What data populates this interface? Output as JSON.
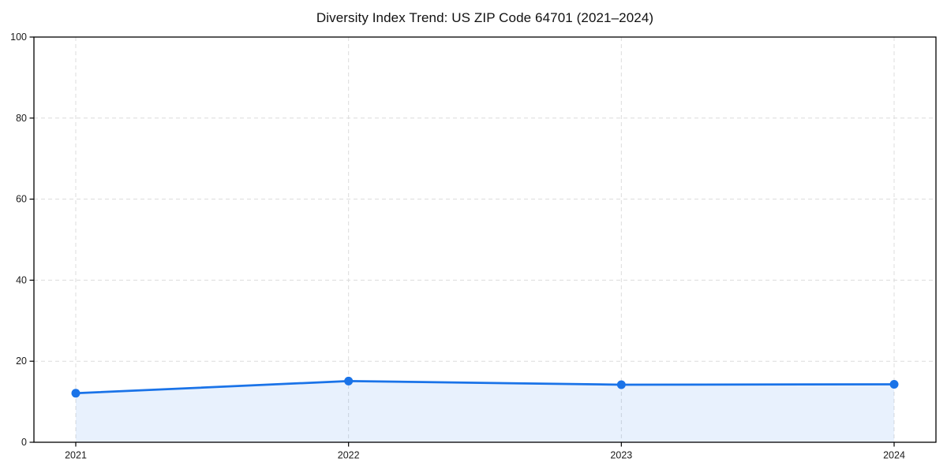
{
  "figure": {
    "background": "#ffffff"
  },
  "chart_data": {
    "type": "line",
    "title": "Diversity Index Trend: US ZIP Code 64701 (2021–2024)",
    "x": [
      "2021",
      "2022",
      "2023",
      "2024"
    ],
    "series": [
      {
        "name": "Diversity Index",
        "values": [
          12.1,
          15.1,
          14.2,
          14.3
        ]
      }
    ],
    "xlabel": "",
    "ylabel": "",
    "ylim": [
      0,
      100
    ],
    "yticks": [
      0,
      20,
      40,
      60,
      80,
      100
    ],
    "grid": true,
    "legend": false,
    "style": {
      "line_color": "#1a73e8",
      "line_width": 2.75,
      "marker": "circle",
      "marker_radius": 5.5,
      "area_fill": true,
      "fill_color": "#1a73e8",
      "fill_opacity": 0.1,
      "grid_color": "#dcdcdc",
      "grid_dash": "5 4",
      "spine_color": "#000000",
      "tick_label_color": "#1a1a1a"
    }
  }
}
